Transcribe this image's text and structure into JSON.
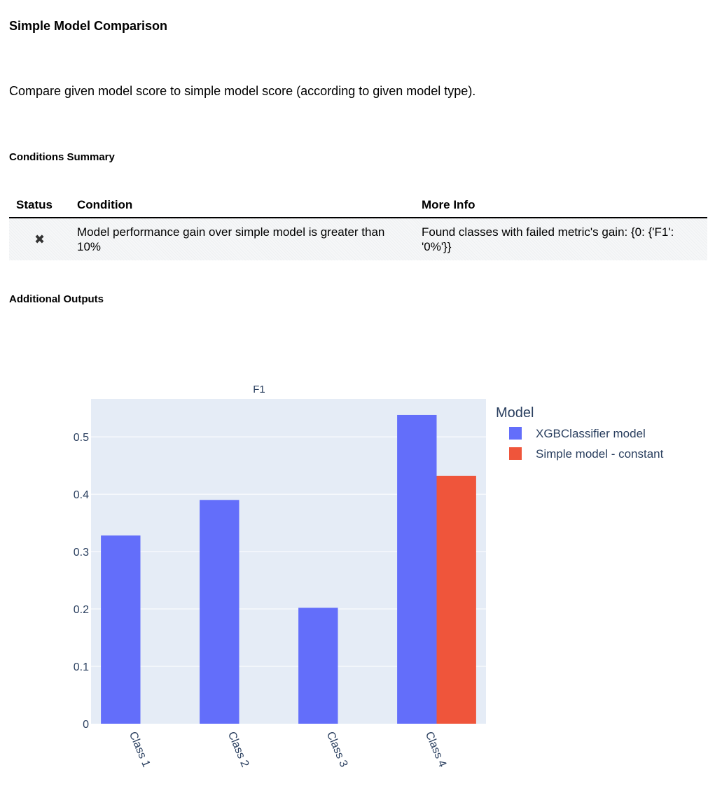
{
  "page": {
    "title": "Simple Model Comparison",
    "description": "Compare given model score to simple model score (according to given model type).",
    "conditions_heading": "Conditions Summary",
    "additional_heading": "Additional Outputs"
  },
  "conditions_table": {
    "headers": [
      "Status",
      "Condition",
      "More Info"
    ],
    "rows": [
      {
        "status_icon": "x-mark-icon",
        "status": "✖",
        "condition": "Model performance gain over simple model is greater than 10%",
        "more_info": "Found classes with failed metric's gain: {0: {'F1': '0%'}}"
      }
    ]
  },
  "chart_data": {
    "type": "bar",
    "title": "F1",
    "categories": [
      "Class 1",
      "Class 2",
      "Class 3",
      "Class 4"
    ],
    "series": [
      {
        "name": "XGBClassifier model",
        "values": [
          0.328,
          0.39,
          0.202,
          0.538
        ],
        "color": "#636efa"
      },
      {
        "name": "Simple model - constant",
        "values": [
          0,
          0,
          0,
          0.432
        ],
        "color": "#ef553b"
      }
    ],
    "yticks": [
      0,
      0.1,
      0.2,
      0.3,
      0.4,
      0.5
    ],
    "ytick_labels": [
      "0",
      "0.1",
      "0.2",
      "0.3",
      "0.4",
      "0.5"
    ],
    "ylim": [
      0,
      0.566
    ],
    "legend_title": "Model",
    "legend_position": "right",
    "grid": true,
    "plot_background": "#e5ecf6"
  }
}
